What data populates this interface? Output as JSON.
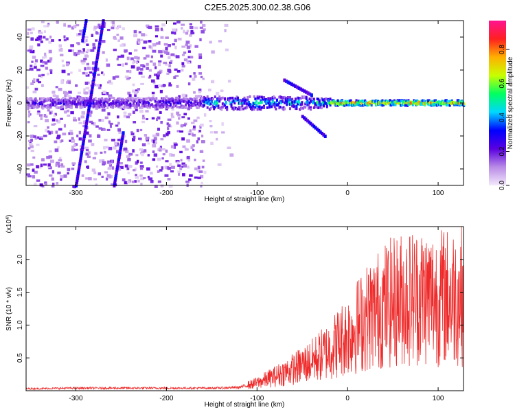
{
  "title": "C2E5.2025.300.02.38.G06",
  "chart_data": [
    {
      "type": "heatmap",
      "xlabel": "Height of straight line (km)",
      "ylabel": "Frequency (Hz)",
      "xlim": [
        -355,
        128
      ],
      "ylim": [
        -50,
        50
      ],
      "xticks": [
        -300,
        -200,
        -100,
        0,
        100
      ],
      "yticks": [
        -40,
        -20,
        0,
        20,
        40
      ],
      "colorbar": {
        "label": "Normalized spectral amplitude",
        "range": [
          0,
          0.97
        ],
        "ticks": [
          0.0,
          0.2,
          0.4,
          0.6,
          0.8
        ],
        "colors": [
          "#f3e9fb",
          "#b98be6",
          "#5a00e0",
          "#0000ff",
          "#00d8ff",
          "#00ff60",
          "#c8ff00",
          "#ffb000",
          "#ff2020",
          "#ff1490"
        ]
      },
      "grid": false
    },
    {
      "type": "line",
      "xlabel": "Height of straight line (km)",
      "ylabel": "SNR (10 * v/v)",
      "y_multiplier": "(x10^4)",
      "xlim": [
        -355,
        128
      ],
      "ylim": [
        0,
        2.5
      ],
      "xticks": [
        -300,
        -200,
        -100,
        0,
        100
      ],
      "yticks": [
        0.5,
        1.0,
        1.5,
        2.0
      ],
      "color": "#ee2a2a",
      "grid": false,
      "x": [
        -355,
        -300,
        -250,
        -200,
        -150,
        -120,
        -100,
        -80,
        -60,
        -40,
        -20,
        0,
        20,
        40,
        60,
        80,
        100,
        128
      ],
      "y": [
        0.03,
        0.04,
        0.04,
        0.04,
        0.04,
        0.05,
        0.12,
        0.22,
        0.33,
        0.45,
        0.62,
        0.85,
        1.1,
        1.3,
        1.4,
        1.45,
        1.42,
        1.45
      ]
    }
  ]
}
